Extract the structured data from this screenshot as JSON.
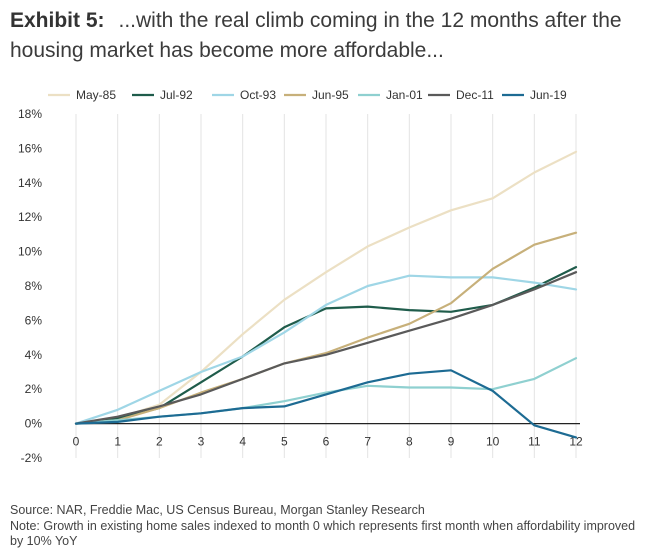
{
  "title": {
    "exhibit": "Exhibit 5:",
    "text": "...with the real climb coming in the 12 months after the housing market has become more affordable..."
  },
  "footer": {
    "source": "Source: NAR, Freddie Mac, US Census Bureau, Morgan Stanley Research",
    "note": "Note: Growth in existing home sales indexed to month 0 which represents first month when affordability improved by 10% YoY"
  },
  "chart_data": {
    "type": "line",
    "x": [
      0,
      1,
      2,
      3,
      4,
      5,
      6,
      7,
      8,
      9,
      10,
      11,
      12
    ],
    "xlim": [
      0,
      12
    ],
    "ylim": [
      -2,
      18
    ],
    "yticks": [
      -2,
      0,
      2,
      4,
      6,
      8,
      10,
      12,
      14,
      16,
      18
    ],
    "ytick_labels": [
      "-2%",
      "0%",
      "2%",
      "4%",
      "6%",
      "8%",
      "10%",
      "12%",
      "14%",
      "16%",
      "18%"
    ],
    "xtick_labels": [
      "0",
      "1",
      "2",
      "3",
      "4",
      "5",
      "6",
      "7",
      "8",
      "9",
      "10",
      "11",
      "12"
    ],
    "grid": "vertical",
    "legend_position": "top",
    "series": [
      {
        "name": "May-85",
        "color": "#ece0c4",
        "values": [
          0,
          0.3,
          1.1,
          3.0,
          5.2,
          7.2,
          8.8,
          10.3,
          11.4,
          12.4,
          13.1,
          14.6,
          15.8
        ]
      },
      {
        "name": "Jul-92",
        "color": "#1f5c4b",
        "values": [
          0,
          0.3,
          0.9,
          2.4,
          3.9,
          5.6,
          6.7,
          6.8,
          6.6,
          6.5,
          6.9,
          7.9,
          9.1
        ]
      },
      {
        "name": "Oct-93",
        "color": "#9fd6e6",
        "values": [
          0,
          0.8,
          1.9,
          3.0,
          3.9,
          5.3,
          6.9,
          8.0,
          8.6,
          8.5,
          8.5,
          8.2,
          7.8
        ]
      },
      {
        "name": "Jun-95",
        "color": "#c7b07a",
        "values": [
          0,
          0.2,
          0.9,
          1.8,
          2.6,
          3.5,
          4.1,
          5.0,
          5.8,
          7.0,
          9.0,
          10.4,
          11.1
        ]
      },
      {
        "name": "Jan-01",
        "color": "#8fd0d0",
        "values": [
          0,
          0.2,
          0.4,
          0.6,
          0.9,
          1.3,
          1.8,
          2.2,
          2.1,
          2.1,
          2.0,
          2.6,
          3.8
        ]
      },
      {
        "name": "Dec-11",
        "color": "#5a5a5a",
        "values": [
          0,
          0.4,
          1.0,
          1.7,
          2.6,
          3.5,
          4.0,
          4.7,
          5.4,
          6.1,
          6.9,
          7.8,
          8.8
        ]
      },
      {
        "name": "Jun-19",
        "color": "#1d6b93",
        "values": [
          0,
          0.1,
          0.4,
          0.6,
          0.9,
          1.0,
          1.7,
          2.4,
          2.9,
          3.1,
          1.9,
          -0.1,
          -0.8
        ]
      }
    ]
  }
}
